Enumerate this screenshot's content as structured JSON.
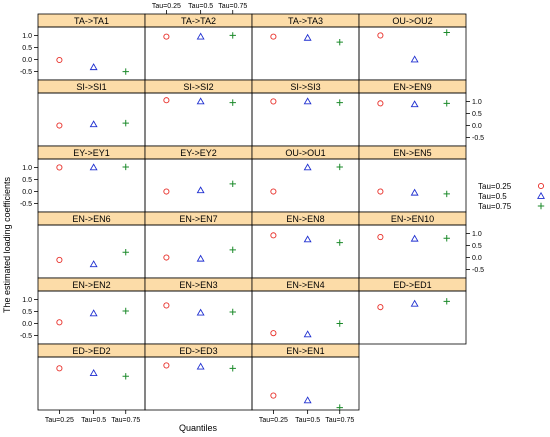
{
  "chart_data": {
    "type": "scatter",
    "xlabel": "Quantiles",
    "ylabel": "The estimated loading coefficients",
    "categories": [
      "Tau=0.25",
      "Tau=0.5",
      "Tau=0.75"
    ],
    "ylim": [
      -0.85,
      1.35
    ],
    "yticks": [
      "-0.5",
      "0.0",
      "0.5",
      "1.0"
    ],
    "grid": false,
    "legend_position": "right",
    "legend": [
      {
        "label": "Tau=0.25",
        "marker": "circle",
        "color": "#e8302a"
      },
      {
        "label": "Tau=0.5",
        "marker": "triangle",
        "color": "#1f2fd0"
      },
      {
        "label": "Tau=0.75",
        "marker": "plus",
        "color": "#1b8a2a"
      }
    ],
    "panels": [
      {
        "title": "TA->TA1",
        "values": [
          -0.02,
          -0.32,
          -0.5
        ]
      },
      {
        "title": "TA->TA2",
        "values": [
          0.95,
          0.95,
          1.0
        ]
      },
      {
        "title": "TA->TA3",
        "values": [
          0.95,
          0.9,
          0.72
        ]
      },
      {
        "title": "OU->OU2",
        "values": [
          1.0,
          0.0,
          1.12
        ]
      },
      {
        "title": "SI->SI1",
        "values": [
          0.0,
          0.05,
          0.1
        ]
      },
      {
        "title": "SI->SI2",
        "values": [
          1.05,
          1.0,
          0.95
        ]
      },
      {
        "title": "SI->SI3",
        "values": [
          1.0,
          1.0,
          0.95
        ]
      },
      {
        "title": "EN->EN9",
        "values": [
          0.92,
          0.88,
          0.92
        ]
      },
      {
        "title": "EY->EY1",
        "values": [
          1.0,
          1.0,
          1.02
        ]
      },
      {
        "title": "EY->EY2",
        "values": [
          0.0,
          0.05,
          0.32
        ]
      },
      {
        "title": "OU->OU1",
        "values": [
          0.0,
          1.0,
          1.02
        ]
      },
      {
        "title": "EN->EN5",
        "values": [
          0.0,
          -0.05,
          -0.1
        ]
      },
      {
        "title": "EN->EN6",
        "values": [
          -0.1,
          -0.28,
          0.22
        ]
      },
      {
        "title": "EN->EN7",
        "values": [
          0.0,
          -0.05,
          0.32
        ]
      },
      {
        "title": "EN->EN8",
        "values": [
          0.92,
          0.75,
          0.62
        ]
      },
      {
        "title": "EN->EN10",
        "values": [
          0.85,
          0.78,
          0.8
        ]
      },
      {
        "title": "EN->EN2",
        "values": [
          0.05,
          0.42,
          0.52
        ]
      },
      {
        "title": "EN->EN3",
        "values": [
          0.75,
          0.45,
          0.48
        ]
      },
      {
        "title": "EN->EN4",
        "values": [
          -0.4,
          -0.45,
          0.0
        ]
      },
      {
        "title": "ED->ED1",
        "values": [
          0.68,
          0.82,
          0.92
        ]
      },
      {
        "title": "ED->ED2",
        "values": [
          0.88,
          0.68,
          0.55
        ]
      },
      {
        "title": "ED->ED3",
        "values": [
          1.0,
          0.95,
          0.88
        ]
      },
      {
        "title": "EN->EN1",
        "values": [
          -0.25,
          -0.45,
          -0.75
        ]
      }
    ]
  }
}
